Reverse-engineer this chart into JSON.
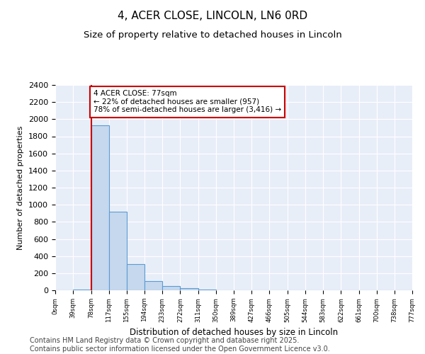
{
  "title": "4, ACER CLOSE, LINCOLN, LN6 0RD",
  "subtitle": "Size of property relative to detached houses in Lincoln",
  "xlabel": "Distribution of detached houses by size in Lincoln",
  "ylabel": "Number of detached properties",
  "bar_color": "#c5d8ed",
  "bar_edge_color": "#5b9bd5",
  "background_color": "#e8eef8",
  "grid_color": "#ffffff",
  "annotation_box_color": "#cc0000",
  "annotation_text": "4 ACER CLOSE: 77sqm\n← 22% of detached houses are smaller (957)\n78% of semi-detached houses are larger (3,416) →",
  "property_line_x": 78,
  "bin_edges": [
    0,
    39,
    78,
    117,
    155,
    194,
    233,
    272,
    311,
    350,
    389,
    427,
    466,
    505,
    544,
    583,
    622,
    661,
    700,
    738,
    777
  ],
  "bin_counts": [
    0,
    10,
    1930,
    920,
    310,
    105,
    50,
    25,
    10,
    4,
    2,
    1,
    1,
    1,
    0,
    0,
    0,
    0,
    0,
    0
  ],
  "ylim": [
    0,
    2400
  ],
  "yticks": [
    0,
    200,
    400,
    600,
    800,
    1000,
    1200,
    1400,
    1600,
    1800,
    2000,
    2200,
    2400
  ],
  "footer": "Contains HM Land Registry data © Crown copyright and database right 2025.\nContains public sector information licensed under the Open Government Licence v3.0.",
  "footer_fontsize": 7,
  "title_fontsize": 11,
  "subtitle_fontsize": 9.5
}
